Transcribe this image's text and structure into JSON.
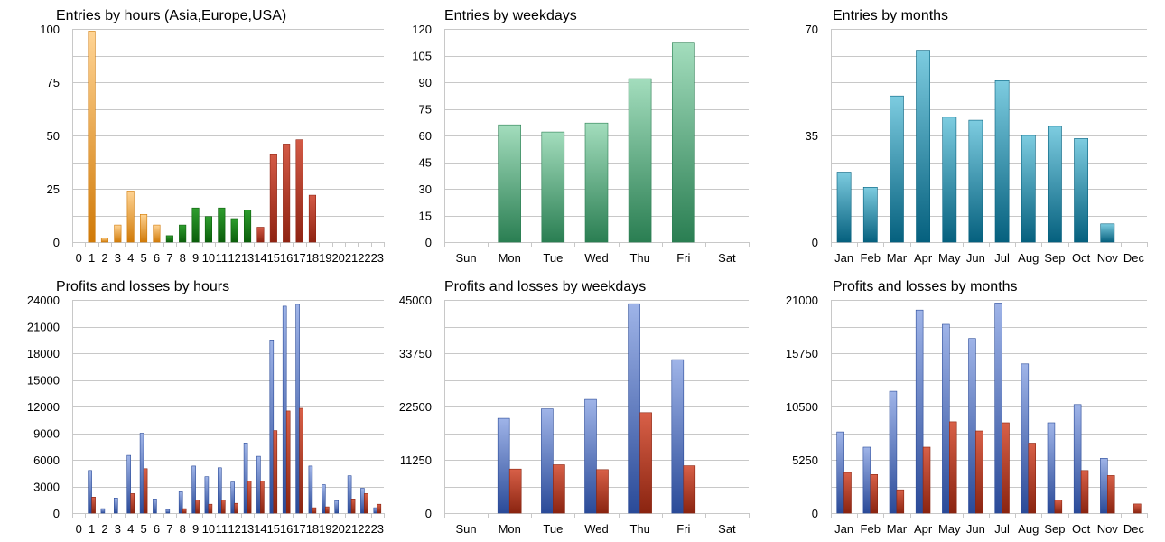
{
  "colors": {
    "orange_light": "#ffd494",
    "orange_dark": "#d07a08",
    "green_light": "#2f9e2f",
    "green_dark": "#0b5e0b",
    "red_light": "#d35a46",
    "red_dark": "#8f2312",
    "mint_light": "#a3ddbd",
    "mint_dark": "#2a7e52",
    "teal_light": "#7dcce0",
    "teal_dark": "#05607e",
    "blue_light": "#9fb4e8",
    "blue_dark": "#2a4a98",
    "rust_light": "#d86048",
    "rust_dark": "#8a2410"
  },
  "chart_data": [
    {
      "id": "entries-hours",
      "type": "bar",
      "title": "Entries by hours (Asia,Europe,USA)",
      "categories": [
        "0",
        "1",
        "2",
        "3",
        "4",
        "5",
        "6",
        "7",
        "8",
        "9",
        "10",
        "11",
        "12",
        "13",
        "14",
        "15",
        "16",
        "17",
        "18",
        "19",
        "20",
        "21",
        "22",
        "23"
      ],
      "yticks": [
        "0",
        "25",
        "50",
        "75",
        "100"
      ],
      "ylim": [
        0,
        100
      ],
      "series": [
        {
          "name": "Entries",
          "values": [
            0,
            99,
            2,
            8,
            24,
            13,
            8,
            3,
            8,
            16,
            12,
            16,
            11,
            15,
            7,
            41,
            46,
            48,
            22,
            0,
            0,
            0,
            0,
            0
          ],
          "colors": [
            "orange",
            "orange",
            "orange",
            "orange",
            "orange",
            "orange",
            "orange",
            "green",
            "green",
            "green",
            "green",
            "green",
            "green",
            "green",
            "red",
            "red",
            "red",
            "red",
            "red",
            "red",
            "red",
            "red",
            "red",
            "red"
          ]
        }
      ],
      "xlabel": "",
      "ylabel": ""
    },
    {
      "id": "entries-weekdays",
      "type": "bar",
      "title": "Entries by weekdays",
      "categories": [
        "Sun",
        "Mon",
        "Tue",
        "Wed",
        "Thu",
        "Fri",
        "Sat"
      ],
      "yticks": [
        "0",
        "15",
        "30",
        "45",
        "60",
        "75",
        "90",
        "105",
        "120"
      ],
      "ylim": [
        0,
        120
      ],
      "series": [
        {
          "name": "Entries",
          "values": [
            0,
            66,
            62,
            67,
            92,
            112,
            0
          ],
          "color": "mint"
        }
      ],
      "xlabel": "",
      "ylabel": ""
    },
    {
      "id": "entries-months",
      "type": "bar",
      "title": "Entries by months",
      "categories": [
        "Jan",
        "Feb",
        "Mar",
        "Apr",
        "May",
        "Jun",
        "Jul",
        "Aug",
        "Sep",
        "Oct",
        "Nov",
        "Dec"
      ],
      "yticks": [
        "0",
        "35",
        "70"
      ],
      "ylim": [
        0,
        70
      ],
      "series": [
        {
          "name": "Entries",
          "values": [
            23,
            18,
            48,
            63,
            41,
            40,
            53,
            35,
            38,
            34,
            6,
            0
          ],
          "color": "teal"
        }
      ],
      "xlabel": "",
      "ylabel": ""
    },
    {
      "id": "pl-hours",
      "type": "bar",
      "title": "Profits and losses by hours",
      "categories": [
        "0",
        "1",
        "2",
        "3",
        "4",
        "5",
        "6",
        "7",
        "8",
        "9",
        "10",
        "11",
        "12",
        "13",
        "14",
        "15",
        "16",
        "17",
        "18",
        "19",
        "20",
        "21",
        "22",
        "23"
      ],
      "yticks": [
        "0",
        "3000",
        "6000",
        "9000",
        "12000",
        "15000",
        "18000",
        "21000",
        "24000"
      ],
      "ylim": [
        0,
        24000
      ],
      "series": [
        {
          "name": "Profits",
          "color": "blue",
          "values": [
            0,
            4800,
            500,
            1700,
            6500,
            9000,
            1600,
            400,
            2400,
            5300,
            4100,
            5100,
            3500,
            7900,
            6400,
            19500,
            23300,
            23500,
            5300,
            3200,
            1400,
            4200,
            2800,
            600
          ]
        },
        {
          "name": "Losses",
          "color": "rust",
          "values": [
            0,
            1800,
            0,
            0,
            2200,
            5000,
            0,
            0,
            500,
            1500,
            1000,
            1500,
            1100,
            3600,
            3600,
            9300,
            11500,
            11800,
            600,
            700,
            0,
            1600,
            2200,
            1000
          ]
        }
      ],
      "xlabel": "",
      "ylabel": ""
    },
    {
      "id": "pl-weekdays",
      "type": "bar",
      "title": "Profits and losses by weekdays",
      "categories": [
        "Sun",
        "Mon",
        "Tue",
        "Wed",
        "Thu",
        "Fri",
        "Sat"
      ],
      "yticks": [
        "0",
        "11250",
        "22500",
        "33750",
        "45000"
      ],
      "ylim": [
        0,
        45000
      ],
      "series": [
        {
          "name": "Profits",
          "color": "blue",
          "values": [
            0,
            20000,
            22000,
            24000,
            44200,
            32400,
            0
          ]
        },
        {
          "name": "Losses",
          "color": "rust",
          "values": [
            0,
            9300,
            10200,
            9200,
            21200,
            10000,
            0
          ]
        }
      ],
      "xlabel": "",
      "ylabel": ""
    },
    {
      "id": "pl-months",
      "type": "bar",
      "title": "Profits and losses by months",
      "categories": [
        "Jan",
        "Feb",
        "Mar",
        "Apr",
        "May",
        "Jun",
        "Jul",
        "Aug",
        "Sep",
        "Oct",
        "Nov",
        "Dec"
      ],
      "yticks": [
        "0",
        "5250",
        "10500",
        "15750",
        "21000"
      ],
      "ylim": [
        0,
        21000
      ],
      "series": [
        {
          "name": "Profits",
          "color": "blue",
          "values": [
            8000,
            6500,
            12000,
            20000,
            18600,
            17200,
            20700,
            14700,
            8900,
            10700,
            5400,
            0
          ]
        },
        {
          "name": "Losses",
          "color": "rust",
          "values": [
            4000,
            3800,
            2300,
            6500,
            9000,
            8100,
            8900,
            6900,
            1300,
            4200,
            3700,
            900
          ]
        }
      ],
      "xlabel": "",
      "ylabel": ""
    }
  ]
}
